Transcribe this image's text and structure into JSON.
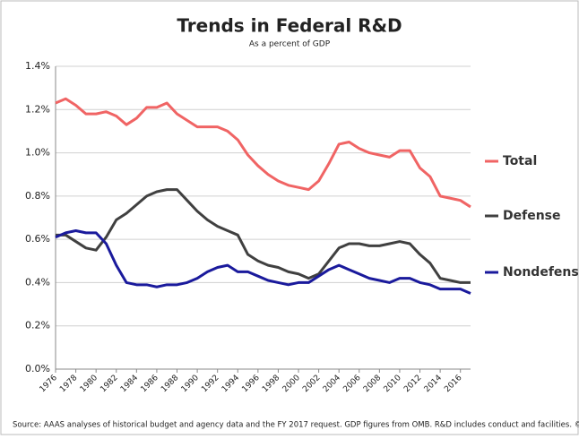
{
  "chart_data": {
    "type": "line",
    "title": "Trends in Federal R&D",
    "subtitle": "As a percent of GDP",
    "source": "Source: AAAS analyses of historical budget and agency data and the FY 2017 request. GDP figures from OMB. R&D includes conduct and facilities. © AAAS",
    "x": [
      1976,
      1977,
      1978,
      1979,
      1980,
      1981,
      1982,
      1983,
      1984,
      1985,
      1986,
      1987,
      1988,
      1989,
      1990,
      1991,
      1992,
      1993,
      1994,
      1995,
      1996,
      1997,
      1998,
      1999,
      2000,
      2001,
      2002,
      2003,
      2004,
      2005,
      2006,
      2007,
      2008,
      2009,
      2010,
      2011,
      2012,
      2013,
      2014,
      2015,
      2016,
      2017
    ],
    "series": [
      {
        "name": "Total",
        "color": "#f06464",
        "values": [
          1.23,
          1.25,
          1.22,
          1.18,
          1.18,
          1.19,
          1.17,
          1.13,
          1.16,
          1.21,
          1.21,
          1.23,
          1.18,
          1.15,
          1.12,
          1.12,
          1.12,
          1.1,
          1.06,
          0.99,
          0.94,
          0.9,
          0.87,
          0.85,
          0.84,
          0.83,
          0.87,
          0.95,
          1.04,
          1.05,
          1.02,
          1.0,
          0.99,
          0.98,
          1.01,
          1.01,
          0.93,
          0.89,
          0.8,
          0.79,
          0.78,
          0.75
        ]
      },
      {
        "name": "Defense",
        "color": "#404040",
        "values": [
          0.62,
          0.62,
          0.59,
          0.56,
          0.55,
          0.61,
          0.69,
          0.72,
          0.76,
          0.8,
          0.82,
          0.83,
          0.83,
          0.78,
          0.73,
          0.69,
          0.66,
          0.64,
          0.62,
          0.53,
          0.5,
          0.48,
          0.47,
          0.45,
          0.44,
          0.42,
          0.44,
          0.5,
          0.56,
          0.58,
          0.58,
          0.57,
          0.57,
          0.58,
          0.59,
          0.58,
          0.53,
          0.49,
          0.42,
          0.41,
          0.4,
          0.4
        ]
      },
      {
        "name": "Nondefense",
        "color": "#1a1a9c",
        "values": [
          0.61,
          0.63,
          0.64,
          0.63,
          0.63,
          0.58,
          0.48,
          0.4,
          0.39,
          0.39,
          0.38,
          0.39,
          0.39,
          0.4,
          0.42,
          0.45,
          0.47,
          0.48,
          0.45,
          0.45,
          0.43,
          0.41,
          0.4,
          0.39,
          0.4,
          0.4,
          0.43,
          0.46,
          0.48,
          0.46,
          0.44,
          0.42,
          0.41,
          0.4,
          0.42,
          0.42,
          0.4,
          0.39,
          0.37,
          0.37,
          0.37,
          0.35
        ]
      }
    ],
    "xlim": [
      1976,
      2017
    ],
    "xticks": [
      1976,
      1978,
      1980,
      1982,
      1984,
      1986,
      1988,
      1990,
      1992,
      1994,
      1996,
      1998,
      2000,
      2002,
      2004,
      2006,
      2008,
      2010,
      2012,
      2014,
      2016
    ],
    "ylim": [
      0,
      1.4
    ],
    "yticks": [
      {
        "value": 0,
        "label": "0.0%"
      },
      {
        "value": 0.2,
        "label": "0.2%"
      },
      {
        "value": 0.4,
        "label": "0.4%"
      },
      {
        "value": 0.6,
        "label": "0.6%"
      },
      {
        "value": 0.8,
        "label": "0.8%"
      },
      {
        "value": 1.0,
        "label": "1.0%"
      },
      {
        "value": 1.2,
        "label": "1.2%"
      },
      {
        "value": 1.4,
        "label": "1.4%"
      }
    ],
    "grid": true
  }
}
